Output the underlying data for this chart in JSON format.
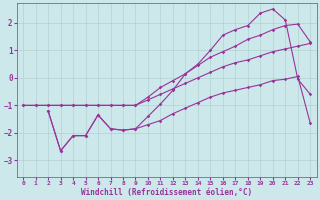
{
  "background_color": "#cce8ea",
  "grid_color": "#aacccc",
  "line_color": "#993399",
  "xlabel": "Windchill (Refroidissement éolien,°C)",
  "xlim": [
    -0.5,
    23.5
  ],
  "ylim": [
    -3.6,
    2.7
  ],
  "yticks": [
    -3,
    -2,
    -1,
    0,
    1,
    2
  ],
  "xticks": [
    0,
    1,
    2,
    3,
    4,
    5,
    6,
    7,
    8,
    9,
    10,
    11,
    12,
    13,
    14,
    15,
    16,
    17,
    18,
    19,
    20,
    21,
    22,
    23
  ],
  "line1_x": [
    0,
    1,
    2,
    3,
    4,
    5,
    6,
    7,
    8,
    9,
    10,
    11,
    12,
    13,
    14,
    15,
    16,
    17,
    18,
    19,
    20,
    21,
    22,
    23
  ],
  "line1_y": [
    -1.0,
    -1.0,
    -1.0,
    -1.0,
    -1.0,
    -1.0,
    -1.0,
    -1.0,
    -1.0,
    -1.0,
    -0.8,
    -0.6,
    -0.4,
    -0.2,
    0.0,
    0.2,
    0.4,
    0.55,
    0.65,
    0.8,
    0.95,
    1.05,
    1.15,
    1.25
  ],
  "line2_x": [
    0,
    1,
    2,
    3,
    4,
    5,
    6,
    7,
    8,
    9,
    10,
    11,
    12,
    13,
    14,
    15,
    16,
    17,
    18,
    19,
    20,
    21,
    22,
    23
  ],
  "line2_y": [
    -1.0,
    -1.0,
    -1.0,
    -1.0,
    -1.0,
    -1.0,
    -1.0,
    -1.0,
    -1.0,
    -1.0,
    -0.7,
    -0.35,
    -0.1,
    0.15,
    0.45,
    0.75,
    0.95,
    1.15,
    1.4,
    1.55,
    1.75,
    1.9,
    1.95,
    1.3
  ],
  "line3_x": [
    2,
    3,
    4,
    5,
    6,
    7,
    8,
    9,
    10,
    11,
    12,
    13,
    14,
    15,
    16,
    17,
    18,
    19,
    20,
    21,
    22,
    23
  ],
  "line3_y": [
    -1.2,
    -2.65,
    -2.1,
    -2.1,
    -1.35,
    -1.85,
    -1.9,
    -1.85,
    -1.7,
    -1.55,
    -1.3,
    -1.1,
    -0.9,
    -0.7,
    -0.55,
    -0.45,
    -0.35,
    -0.25,
    -0.1,
    -0.05,
    0.05,
    -1.65
  ],
  "line4_x": [
    2,
    3,
    4,
    5,
    6,
    7,
    8,
    9,
    10,
    11,
    12,
    13,
    14,
    15,
    16,
    17,
    18,
    19,
    20,
    21,
    22,
    23
  ],
  "line4_y": [
    -1.2,
    -2.65,
    -2.1,
    -2.1,
    -1.35,
    -1.85,
    -1.9,
    -1.85,
    -1.4,
    -0.95,
    -0.45,
    0.15,
    0.5,
    1.0,
    1.55,
    1.75,
    1.9,
    2.35,
    2.5,
    2.1,
    -0.05,
    -0.6
  ],
  "marker": "D",
  "marker_size": 1.8,
  "linewidth": 0.8
}
